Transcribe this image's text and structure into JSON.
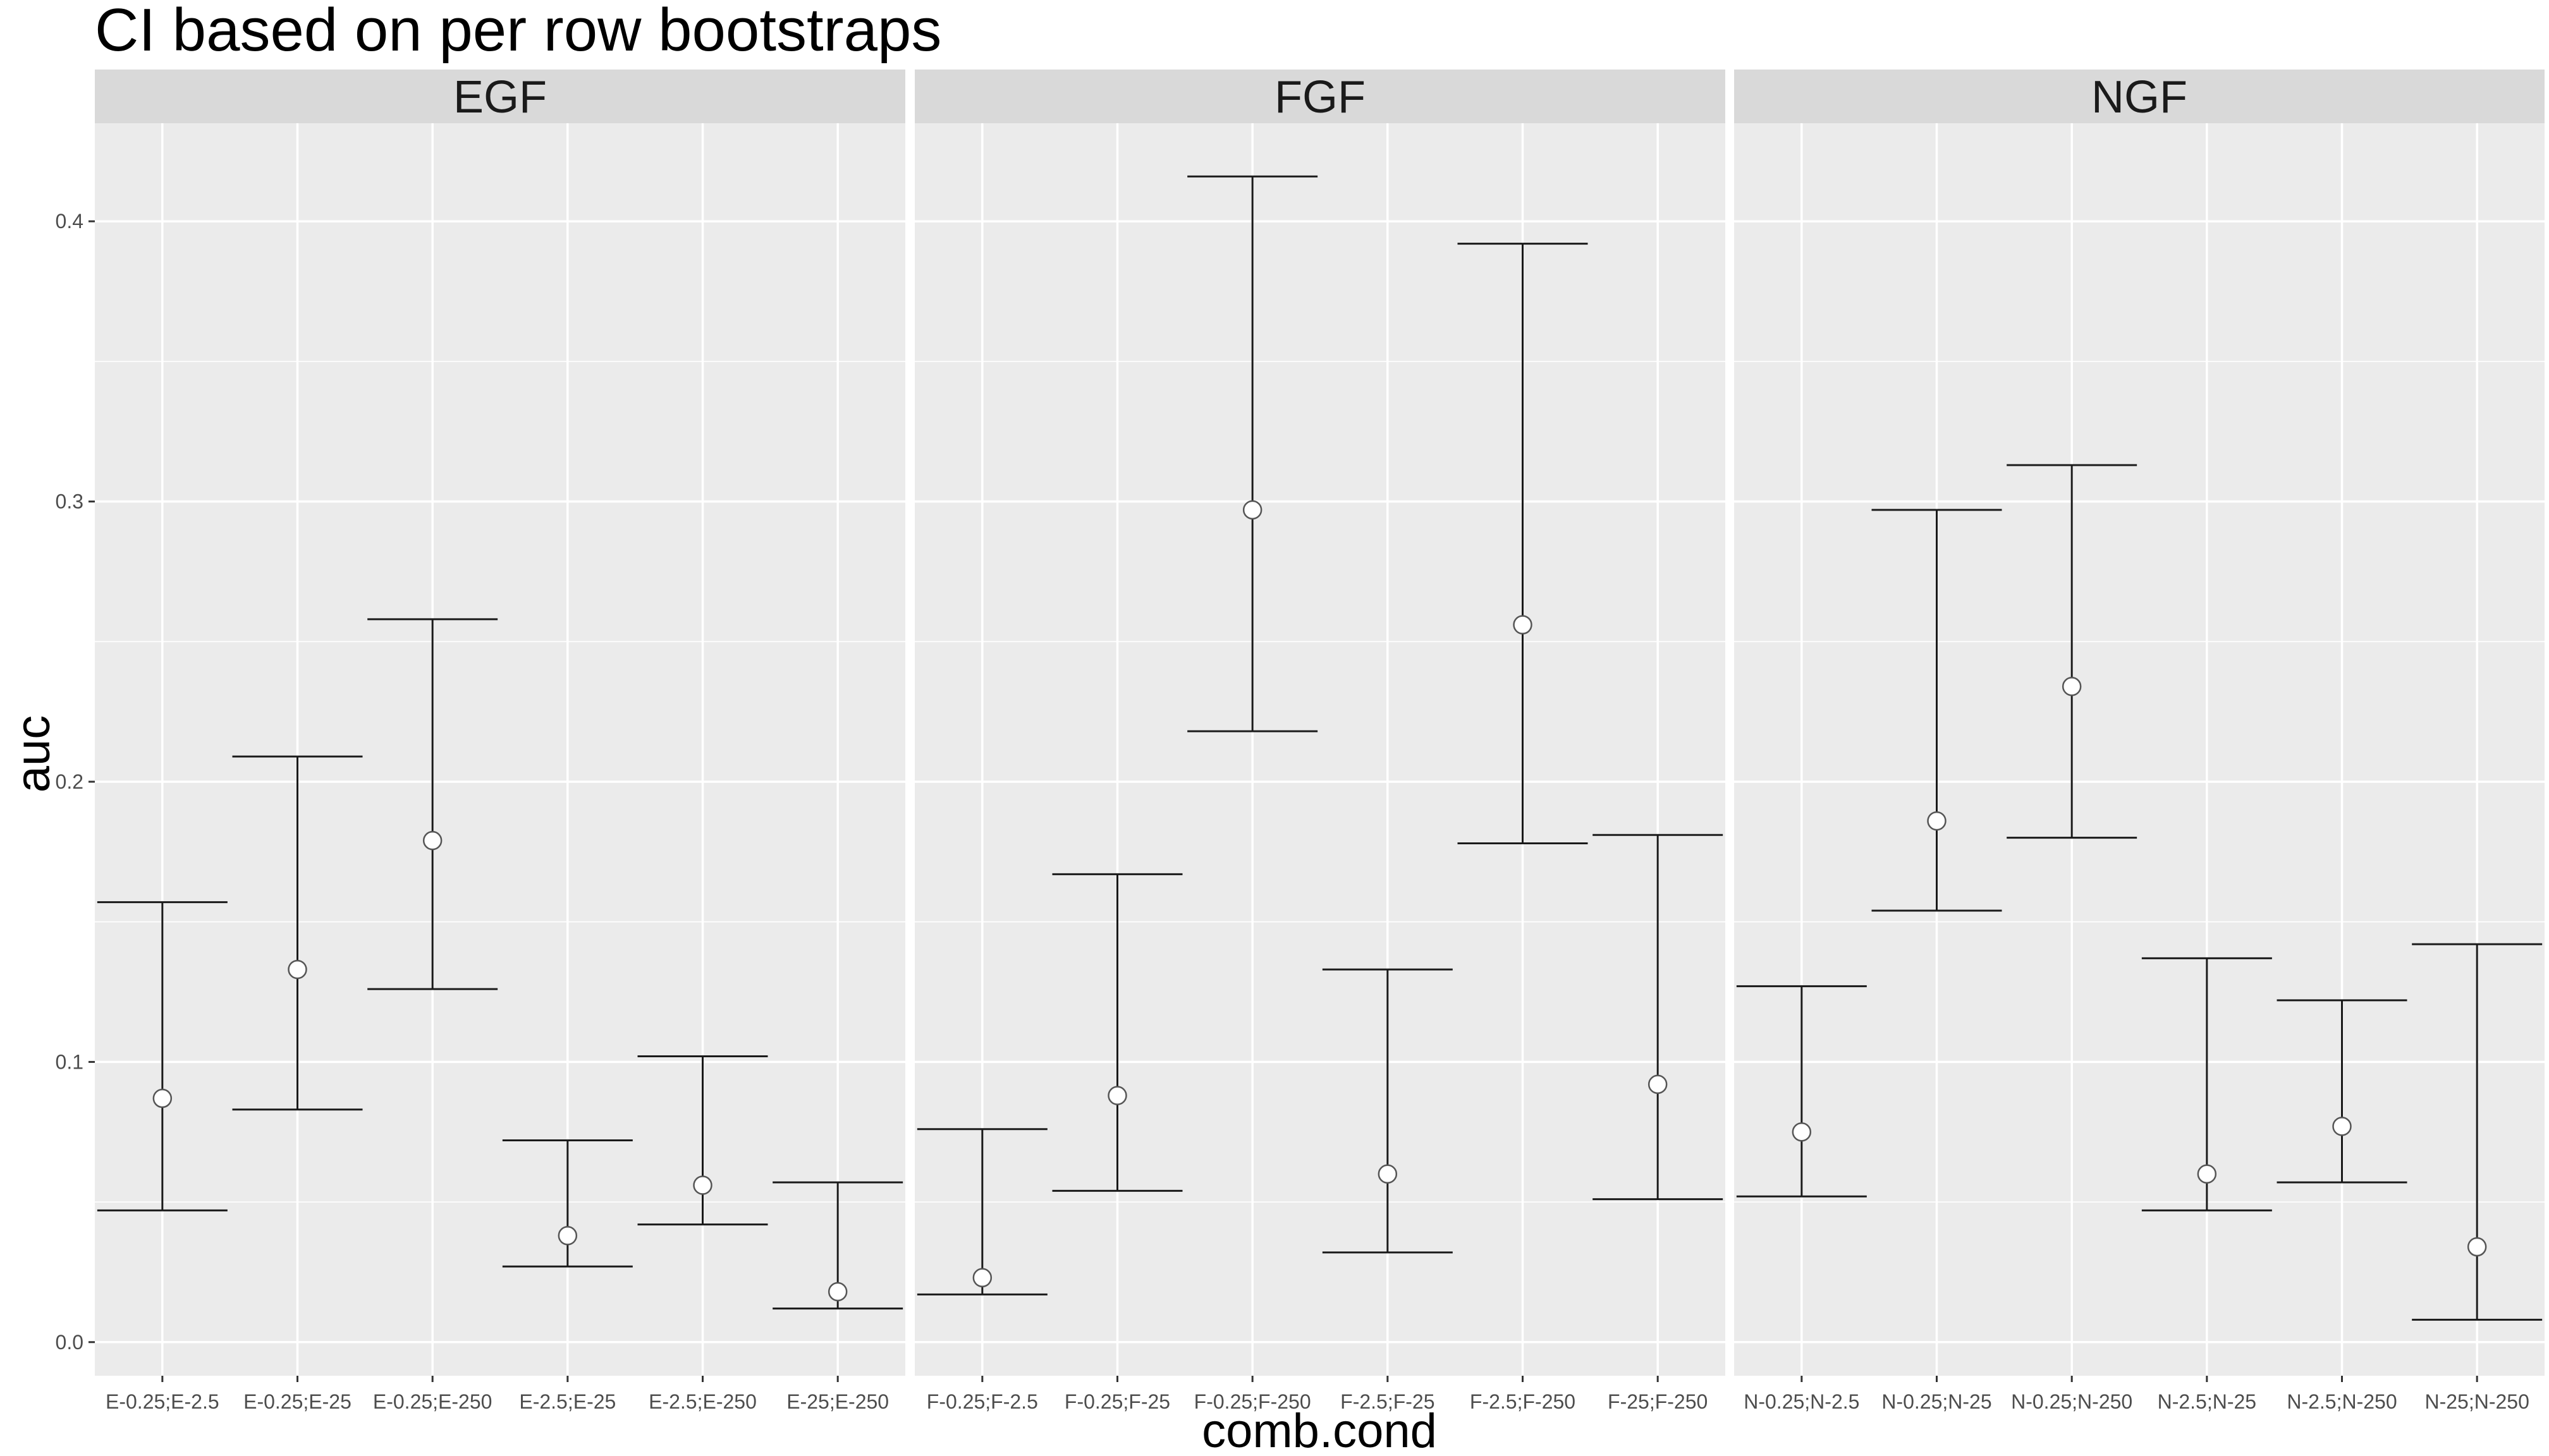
{
  "chart_data": {
    "type": "errorbar",
    "title": "CI based on per row bootstraps",
    "xlabel": "comb.cond",
    "ylabel": "auc",
    "ylim": [
      -0.012,
      0.435
    ],
    "y_ticks": [
      0.0,
      0.1,
      0.2,
      0.3,
      0.4
    ],
    "y_tick_labels": [
      "0.0",
      "0.1",
      "0.2",
      "0.3",
      "0.4"
    ],
    "grid": true,
    "colors": {
      "panel_bg": "#ebebeb",
      "strip_bg": "#d9d9d9",
      "point_fill": "#ffffff",
      "line": "#1a1a1a"
    },
    "panels": [
      {
        "facet": "EGF",
        "categories": [
          "E-0.25;E-2.5",
          "E-0.25;E-25",
          "E-0.25;E-250",
          "E-2.5;E-25",
          "E-2.5;E-250",
          "E-25;E-250"
        ],
        "estimate": [
          0.087,
          0.133,
          0.179,
          0.038,
          0.056,
          0.018
        ],
        "lower": [
          0.047,
          0.083,
          0.126,
          0.027,
          0.042,
          0.012
        ],
        "upper": [
          0.157,
          0.209,
          0.258,
          0.072,
          0.102,
          0.057
        ]
      },
      {
        "facet": "FGF",
        "categories": [
          "F-0.25;F-2.5",
          "F-0.25;F-25",
          "F-0.25;F-250",
          "F-2.5;F-25",
          "F-2.5;F-250",
          "F-25;F-250"
        ],
        "estimate": [
          0.023,
          0.088,
          0.297,
          0.06,
          0.256,
          0.092
        ],
        "lower": [
          0.017,
          0.054,
          0.218,
          0.032,
          0.178,
          0.051
        ],
        "upper": [
          0.076,
          0.167,
          0.416,
          0.133,
          0.392,
          0.181
        ]
      },
      {
        "facet": "NGF",
        "categories": [
          "N-0.25;N-2.5",
          "N-0.25;N-25",
          "N-0.25;N-250",
          "N-2.5;N-25",
          "N-2.5;N-250",
          "N-25;N-250"
        ],
        "estimate": [
          0.075,
          0.186,
          0.234,
          0.06,
          0.077,
          0.034
        ],
        "lower": [
          0.052,
          0.154,
          0.18,
          0.047,
          0.057,
          0.008
        ],
        "upper": [
          0.127,
          0.297,
          0.313,
          0.137,
          0.122,
          0.142
        ]
      }
    ]
  }
}
